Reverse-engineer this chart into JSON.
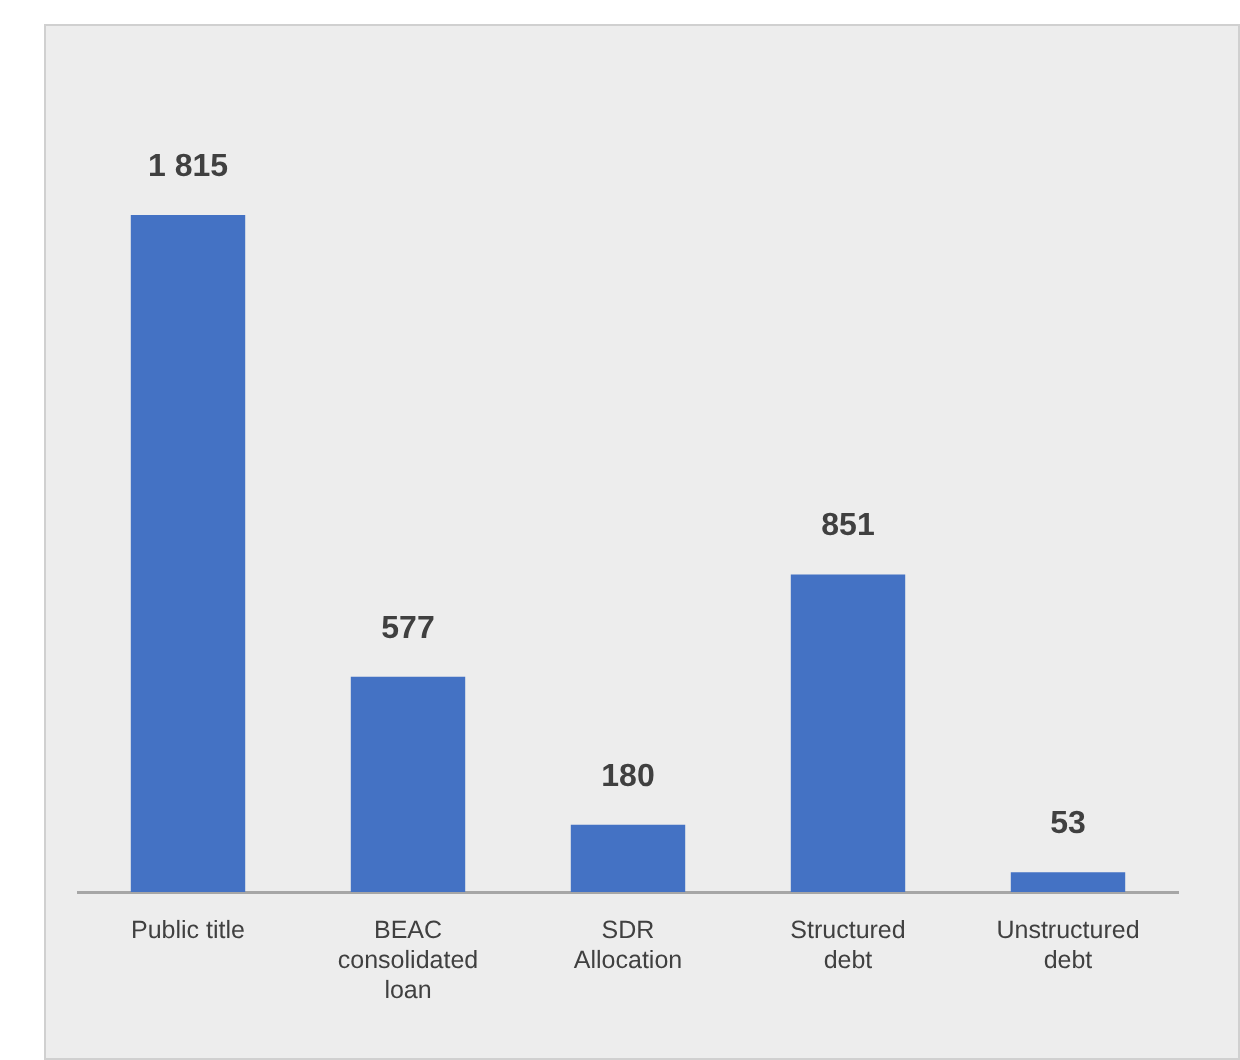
{
  "chart_data": {
    "type": "bar",
    "categories": [
      "Public title",
      "BEAC consolidated loan",
      "SDR Allocation",
      "Structured debt",
      "Unstructured debt"
    ],
    "values": [
      1815,
      577,
      180,
      851,
      53
    ],
    "value_labels": [
      "1 815",
      "577",
      "180",
      "851",
      "53"
    ],
    "color": "#4472c4",
    "grid": false,
    "legend": false,
    "tick_labels": "x"
  }
}
